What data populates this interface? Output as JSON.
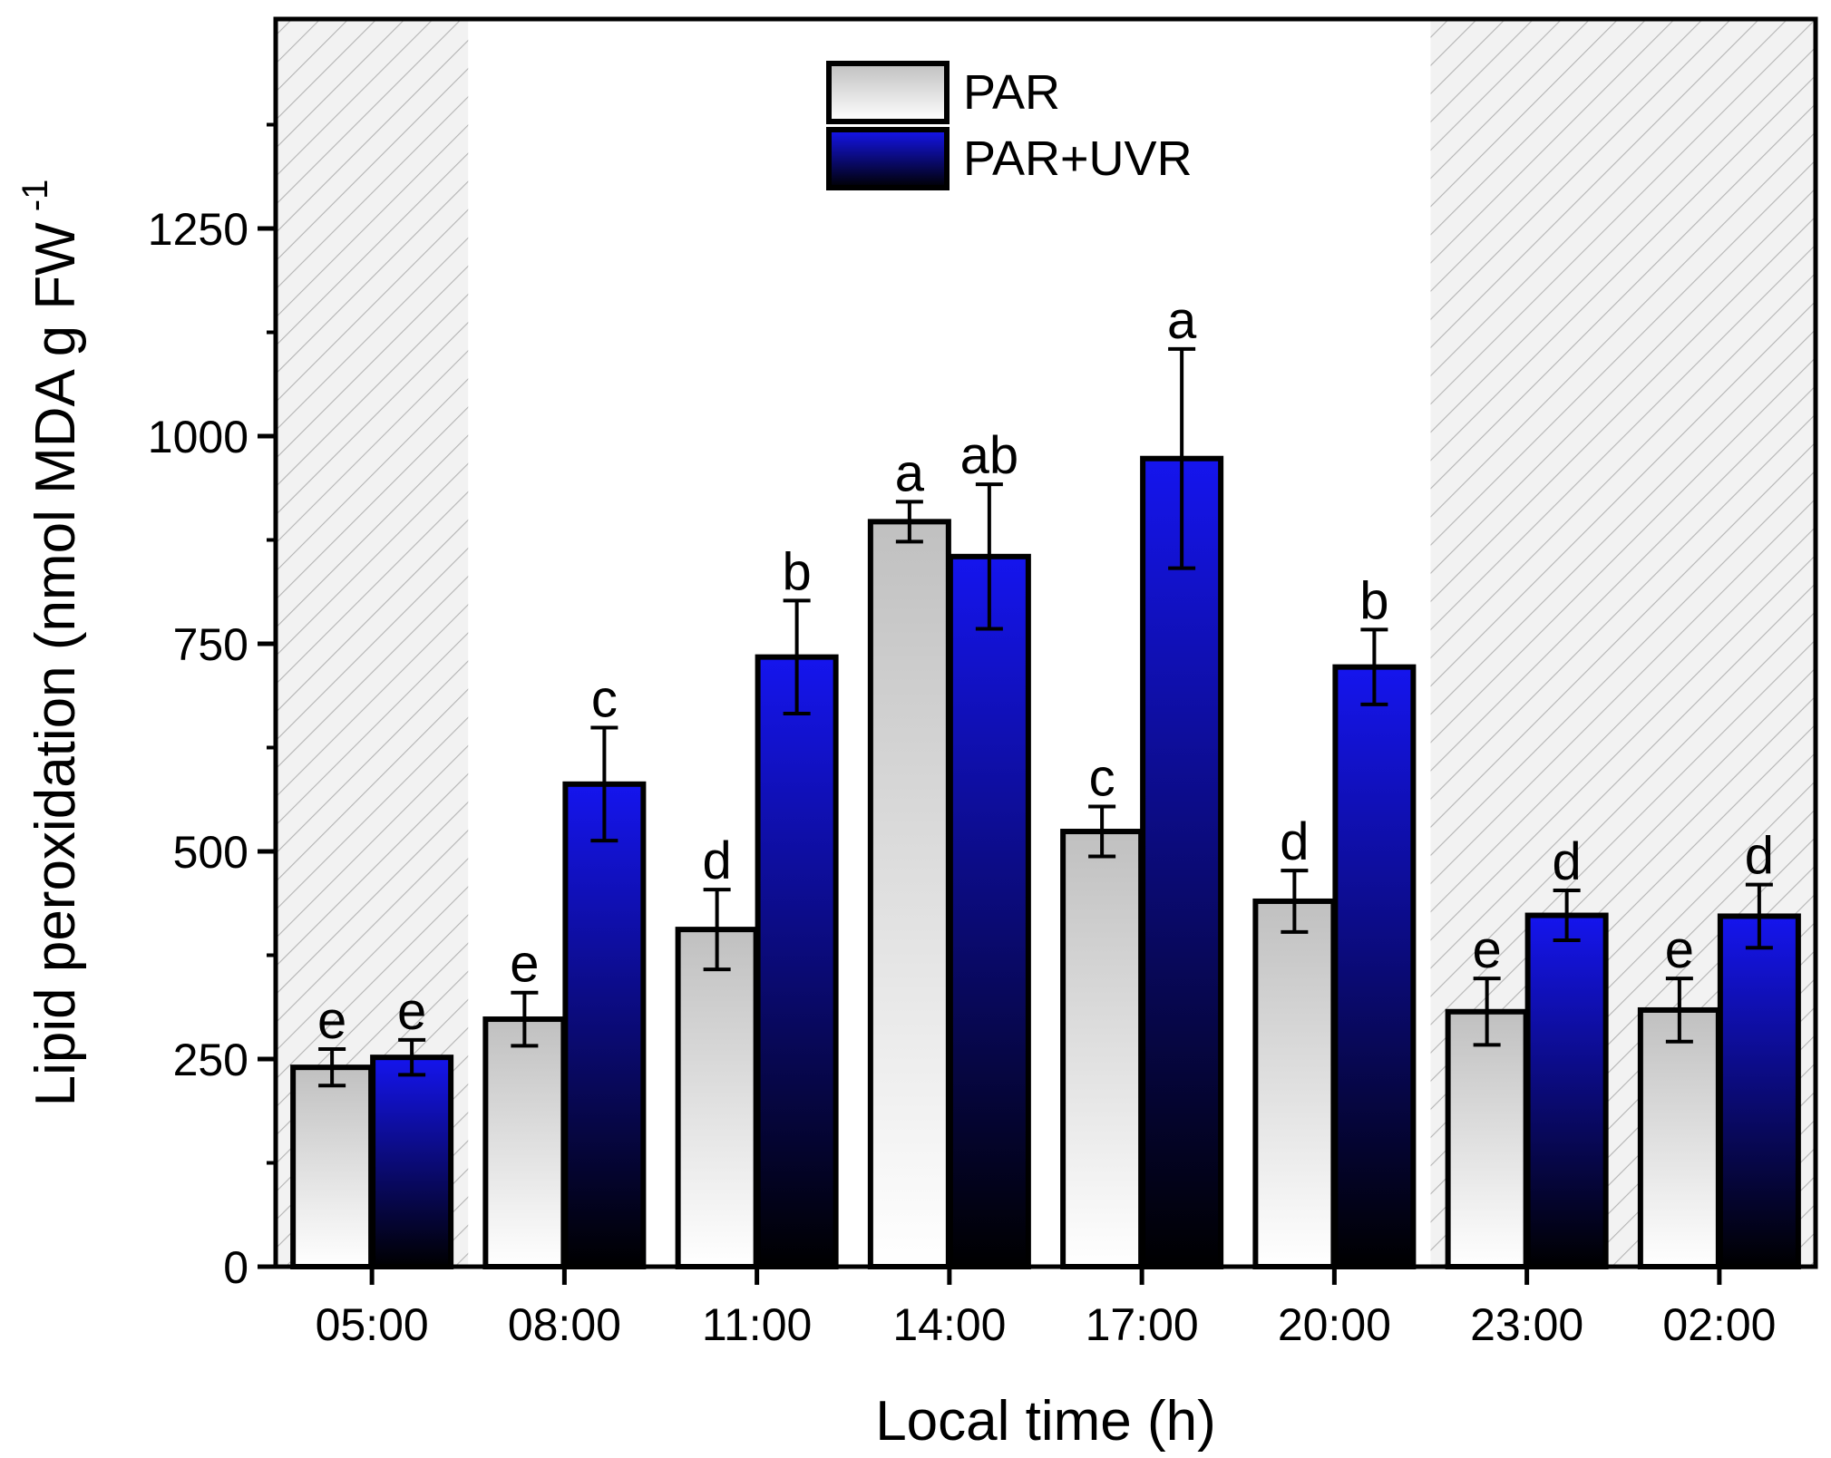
{
  "chart_data": {
    "type": "bar",
    "title": "",
    "xlabel": "Local time (h)",
    "ylabel": "Lipid peroxidation (nmol MDA g FW",
    "ylabel_superscript": "-1",
    "ylim": [
      0,
      1500
    ],
    "yticks": [
      0,
      250,
      500,
      750,
      1000,
      1250
    ],
    "categories": [
      "05:00",
      "08:00",
      "11:00",
      "14:00",
      "17:00",
      "20:00",
      "23:00",
      "02:00"
    ],
    "dark_period_categories": [
      "05:00",
      "23:00",
      "02:00"
    ],
    "legend_position": "top-center",
    "series": [
      {
        "name": "PAR",
        "color_top": "#c0c0c0",
        "color_bottom": "#ffffff",
        "values": [
          240,
          298,
          406,
          897,
          524,
          440,
          307,
          309
        ],
        "errors": [
          22,
          32,
          48,
          24,
          30,
          37,
          40,
          38
        ],
        "labels": [
          "e",
          "e",
          "d",
          "a",
          "c",
          "d",
          "e",
          "e"
        ]
      },
      {
        "name": "PAR+UVR",
        "color_top": "#1515ee",
        "color_bottom": "#000000",
        "values": [
          252,
          581,
          734,
          855,
          973,
          722,
          423,
          422
        ],
        "errors": [
          21,
          68,
          68,
          87,
          132,
          45,
          30,
          38
        ],
        "labels": [
          "e",
          "c",
          "b",
          "ab",
          "a",
          "b",
          "d",
          "d"
        ]
      }
    ]
  }
}
